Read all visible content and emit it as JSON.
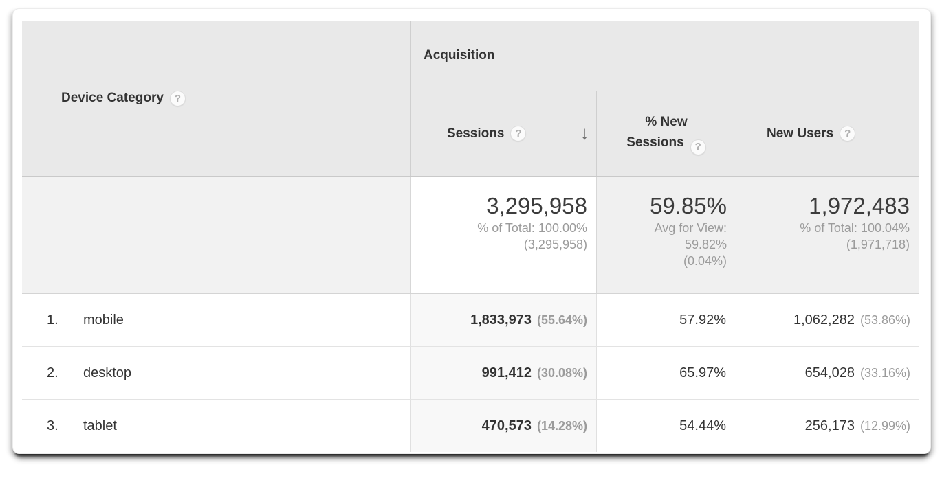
{
  "table": {
    "dimension_header": {
      "label": "Device Category"
    },
    "group_header": {
      "label": "Acquisition"
    },
    "help_glyph": "?",
    "columns": {
      "sessions": {
        "label": "Sessions",
        "sorted": "descending",
        "sort_glyph": "↓"
      },
      "pct_new_sessions": {
        "label_line1": "% New",
        "label_line2": "Sessions"
      },
      "new_users": {
        "label": "New Users"
      }
    },
    "summary": {
      "sessions": {
        "value": "3,295,958",
        "sub1": "% of Total: 100.00%",
        "sub2": "(3,295,958)"
      },
      "pct_new_sessions": {
        "value": "59.85%",
        "sub1": "Avg for View:",
        "sub2": "59.82%",
        "sub3": "(0.04%)"
      },
      "new_users": {
        "value": "1,972,483",
        "sub1": "% of Total: 100.04%",
        "sub2": "(1,971,718)"
      }
    },
    "rows": [
      {
        "index": "1.",
        "category": "mobile",
        "sessions": "1,833,973",
        "sessions_pct": "(55.64%)",
        "pct_new_sessions": "57.92%",
        "new_users": "1,062,282",
        "new_users_pct": "(53.86%)"
      },
      {
        "index": "2.",
        "category": "desktop",
        "sessions": "991,412",
        "sessions_pct": "(30.08%)",
        "pct_new_sessions": "65.97%",
        "new_users": "654,028",
        "new_users_pct": "(33.16%)"
      },
      {
        "index": "3.",
        "category": "tablet",
        "sessions": "470,573",
        "sessions_pct": "(14.28%)",
        "pct_new_sessions": "54.44%",
        "new_users": "256,173",
        "new_users_pct": "(12.99%)"
      }
    ],
    "colors": {
      "header_bg": "#e9e9e9",
      "summary_gray_bg": "#f0f0f0",
      "sorted_column_bg": "#f8f8f8",
      "text_dark": "#333333",
      "text_gray": "#9b9b9b"
    }
  }
}
